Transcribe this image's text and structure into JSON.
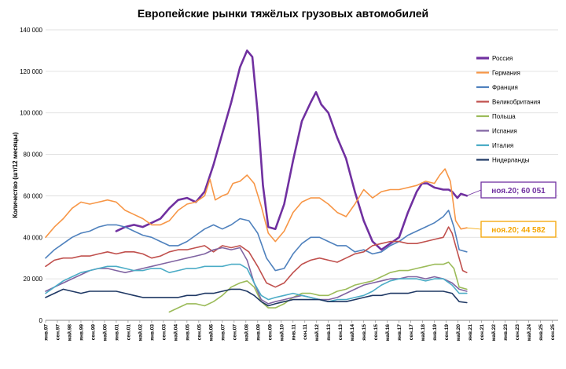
{
  "chart_data": {
    "type": "line",
    "title": "Европейские рынки тяжёлых грузовых автомобилей",
    "ylabel": "Количество (шт/12 месяцы)",
    "xlabel": "",
    "ylim": [
      0,
      140000
    ],
    "yticks": [
      0,
      20000,
      40000,
      60000,
      80000,
      100000,
      120000,
      140000
    ],
    "ytick_labels": [
      "0",
      "20 000",
      "40 000",
      "60 000",
      "80 000",
      "100 000",
      "120 000",
      "140 000"
    ],
    "xlim": [
      1997.0,
      2026.0
    ],
    "x_tick_labels": [
      "янв.97",
      "сен.97",
      "май.98",
      "янв.99",
      "сен.99",
      "май.00",
      "янв.01",
      "сен.01",
      "май.02",
      "янв.03",
      "сен.03",
      "май.04",
      "янв.05",
      "сен.05",
      "май.06",
      "янв.07",
      "сен.07",
      "май.08",
      "янв.09",
      "сен.09",
      "май.10",
      "янв.11",
      "сен.11",
      "май.12",
      "янв.13",
      "сен.13",
      "май.14",
      "янв.15",
      "сен.15",
      "май.16",
      "янв.17",
      "сен.17",
      "май.18",
      "янв.19",
      "сен.19",
      "май.20",
      "янв.21",
      "сен.21",
      "май.22",
      "янв.23",
      "сен.23",
      "май.24",
      "янв.25",
      "сен.25"
    ],
    "grid": "horizontal",
    "legend_position": "right",
    "series": [
      {
        "name": "Россия",
        "color": "#7030A0",
        "width": 2.6,
        "x": [
          2001.0,
          2001.5,
          2002.0,
          2002.5,
          2003.0,
          2003.5,
          2004.0,
          2004.5,
          2005.0,
          2005.5,
          2006.0,
          2006.5,
          2007.0,
          2007.5,
          2008.0,
          2008.4,
          2008.7,
          2009.0,
          2009.3,
          2009.6,
          2010.0,
          2010.5,
          2011.0,
          2011.5,
          2012.0,
          2012.3,
          2012.6,
          2013.0,
          2013.5,
          2014.0,
          2014.5,
          2015.0,
          2015.5,
          2016.0,
          2016.5,
          2017.0,
          2017.5,
          2018.0,
          2018.3,
          2018.6,
          2019.0,
          2019.5,
          2019.8,
          2020.0,
          2020.3,
          2020.5,
          2020.83
        ],
        "y": [
          43000,
          45000,
          46000,
          45000,
          47000,
          49000,
          54000,
          58000,
          59000,
          57000,
          62000,
          75000,
          90000,
          105000,
          122000,
          130000,
          127000,
          100000,
          65000,
          45000,
          44000,
          56000,
          77000,
          96000,
          105000,
          110000,
          104000,
          100000,
          88000,
          78000,
          62000,
          48000,
          38000,
          34000,
          37000,
          40000,
          52000,
          62000,
          66000,
          66000,
          64000,
          63000,
          63000,
          62000,
          59000,
          61000,
          60051
        ]
      },
      {
        "name": "Германия",
        "color": "#F79646",
        "width": 1.6,
        "x": [
          1997.0,
          1997.5,
          1998.0,
          1998.5,
          1999.0,
          1999.5,
          2000.0,
          2000.5,
          2001.0,
          2001.5,
          2002.0,
          2002.5,
          2003.0,
          2003.5,
          2004.0,
          2004.5,
          2005.0,
          2005.5,
          2006.0,
          2006.3,
          2006.6,
          2007.0,
          2007.3,
          2007.6,
          2008.0,
          2008.4,
          2008.8,
          2009.2,
          2009.6,
          2010.0,
          2010.5,
          2011.0,
          2011.5,
          2012.0,
          2012.5,
          2013.0,
          2013.5,
          2014.0,
          2014.5,
          2015.0,
          2015.5,
          2016.0,
          2016.5,
          2017.0,
          2017.5,
          2018.0,
          2018.5,
          2019.0,
          2019.3,
          2019.6,
          2019.9,
          2020.2,
          2020.5,
          2020.83
        ],
        "y": [
          40000,
          45000,
          49000,
          54000,
          57000,
          56000,
          57000,
          58000,
          57000,
          53000,
          51000,
          49000,
          46000,
          46000,
          48000,
          53000,
          56000,
          57000,
          60000,
          68000,
          58000,
          60000,
          61000,
          66000,
          67000,
          70000,
          66000,
          55000,
          42000,
          38000,
          43000,
          52000,
          57000,
          59000,
          59000,
          56000,
          52000,
          50000,
          56000,
          63000,
          59000,
          62000,
          63000,
          63000,
          64000,
          65000,
          67000,
          66000,
          70000,
          73000,
          67000,
          48000,
          44000,
          44582
        ]
      },
      {
        "name": "Франция",
        "color": "#4F81BD",
        "width": 1.6,
        "x": [
          1997.0,
          1997.5,
          1998.0,
          1998.5,
          1999.0,
          1999.5,
          2000.0,
          2000.5,
          2001.0,
          2001.5,
          2002.0,
          2002.5,
          2003.0,
          2003.5,
          2004.0,
          2004.5,
          2005.0,
          2005.5,
          2006.0,
          2006.5,
          2007.0,
          2007.5,
          2008.0,
          2008.5,
          2009.0,
          2009.5,
          2010.0,
          2010.5,
          2011.0,
          2011.5,
          2012.0,
          2012.5,
          2013.0,
          2013.5,
          2014.0,
          2014.5,
          2015.0,
          2015.5,
          2016.0,
          2016.5,
          2017.0,
          2017.5,
          2018.0,
          2018.5,
          2019.0,
          2019.5,
          2019.8,
          2020.1,
          2020.4,
          2020.83
        ],
        "y": [
          30000,
          34000,
          37000,
          40000,
          42000,
          43000,
          45000,
          46000,
          46000,
          45000,
          43000,
          41000,
          40000,
          38000,
          36000,
          36000,
          38000,
          41000,
          44000,
          46000,
          44000,
          46000,
          49000,
          48000,
          42000,
          30000,
          24000,
          25000,
          32000,
          37000,
          40000,
          40000,
          38000,
          36000,
          36000,
          33000,
          34000,
          32000,
          33000,
          36000,
          38000,
          41000,
          43000,
          45000,
          47000,
          50000,
          53000,
          45000,
          34000,
          33000
        ]
      },
      {
        "name": "Великобритания",
        "color": "#C0504D",
        "width": 1.6,
        "x": [
          1997.0,
          1997.5,
          1998.0,
          1998.5,
          1999.0,
          1999.5,
          2000.0,
          2000.5,
          2001.0,
          2001.5,
          2002.0,
          2002.5,
          2003.0,
          2003.5,
          2004.0,
          2004.5,
          2005.0,
          2005.5,
          2006.0,
          2006.5,
          2007.0,
          2007.5,
          2008.0,
          2008.5,
          2009.0,
          2009.5,
          2010.0,
          2010.5,
          2011.0,
          2011.5,
          2012.0,
          2012.5,
          2013.0,
          2013.5,
          2014.0,
          2014.5,
          2015.0,
          2015.5,
          2016.0,
          2016.5,
          2017.0,
          2017.5,
          2018.0,
          2018.5,
          2019.0,
          2019.5,
          2019.8,
          2020.0,
          2020.3,
          2020.6,
          2020.83
        ],
        "y": [
          26000,
          29000,
          30000,
          30000,
          31000,
          31000,
          32000,
          33000,
          32000,
          33000,
          33000,
          32000,
          30000,
          31000,
          33000,
          34000,
          34000,
          35000,
          36000,
          33000,
          36000,
          35000,
          36000,
          33000,
          26000,
          18000,
          16000,
          18000,
          23000,
          27000,
          29000,
          30000,
          29000,
          28000,
          30000,
          32000,
          33000,
          36000,
          37000,
          38000,
          38000,
          37000,
          37000,
          38000,
          39000,
          40000,
          45000,
          42000,
          33000,
          24000,
          23000
        ]
      },
      {
        "name": "Польша",
        "color": "#9BBB59",
        "width": 1.6,
        "x": [
          2004.0,
          2004.5,
          2005.0,
          2005.5,
          2006.0,
          2006.5,
          2007.0,
          2007.5,
          2008.0,
          2008.4,
          2008.8,
          2009.2,
          2009.6,
          2010.0,
          2010.5,
          2011.0,
          2011.5,
          2012.0,
          2012.5,
          2013.0,
          2013.5,
          2014.0,
          2014.5,
          2015.0,
          2015.5,
          2016.0,
          2016.5,
          2017.0,
          2017.5,
          2018.0,
          2018.5,
          2019.0,
          2019.5,
          2019.8,
          2020.1,
          2020.4,
          2020.83
        ],
        "y": [
          4000,
          6000,
          8000,
          8000,
          7000,
          9000,
          12000,
          16000,
          18000,
          19000,
          16000,
          9000,
          6000,
          6000,
          8000,
          11000,
          13000,
          13000,
          12000,
          12000,
          14000,
          15000,
          17000,
          18000,
          19000,
          21000,
          23000,
          24000,
          24000,
          25000,
          26000,
          27000,
          27000,
          28000,
          25000,
          16000,
          15000
        ]
      },
      {
        "name": "Испания",
        "color": "#8064A2",
        "width": 1.6,
        "x": [
          1997.0,
          1997.5,
          1998.0,
          1998.5,
          1999.0,
          1999.5,
          2000.0,
          2000.5,
          2001.0,
          2001.5,
          2002.0,
          2002.5,
          2003.0,
          2003.5,
          2004.0,
          2004.5,
          2005.0,
          2005.5,
          2006.0,
          2006.5,
          2007.0,
          2007.5,
          2008.0,
          2008.4,
          2008.8,
          2009.2,
          2009.6,
          2010.0,
          2010.5,
          2011.0,
          2011.5,
          2012.0,
          2012.5,
          2013.0,
          2013.5,
          2014.0,
          2014.5,
          2015.0,
          2015.5,
          2016.0,
          2016.5,
          2017.0,
          2017.5,
          2018.0,
          2018.5,
          2019.0,
          2019.5,
          2020.0,
          2020.4,
          2020.83
        ],
        "y": [
          14000,
          16000,
          18000,
          20000,
          22000,
          24000,
          25000,
          25000,
          24000,
          23000,
          24000,
          25000,
          26000,
          27000,
          28000,
          29000,
          30000,
          31000,
          32000,
          34000,
          35000,
          34000,
          35000,
          29000,
          18000,
          10000,
          8000,
          9000,
          10000,
          11000,
          12000,
          11000,
          10000,
          10000,
          11000,
          13000,
          15000,
          17000,
          18000,
          19000,
          20000,
          20000,
          21000,
          21000,
          20000,
          21000,
          20000,
          18000,
          15000,
          14000
        ]
      },
      {
        "name": "Италия",
        "color": "#4BACC6",
        "width": 1.6,
        "x": [
          1997.0,
          1997.5,
          1998.0,
          1998.5,
          1999.0,
          1999.5,
          2000.0,
          2000.5,
          2001.0,
          2001.5,
          2002.0,
          2002.5,
          2003.0,
          2003.5,
          2004.0,
          2004.5,
          2005.0,
          2005.5,
          2006.0,
          2006.5,
          2007.0,
          2007.5,
          2008.0,
          2008.4,
          2008.8,
          2009.2,
          2009.6,
          2010.0,
          2010.5,
          2011.0,
          2011.5,
          2012.0,
          2012.5,
          2013.0,
          2013.5,
          2014.0,
          2014.5,
          2015.0,
          2015.5,
          2016.0,
          2016.5,
          2017.0,
          2017.5,
          2018.0,
          2018.5,
          2019.0,
          2019.5,
          2020.0,
          2020.4,
          2020.83
        ],
        "y": [
          13000,
          16000,
          19000,
          21000,
          23000,
          24000,
          25000,
          26000,
          26000,
          25000,
          24000,
          24000,
          25000,
          25000,
          23000,
          24000,
          25000,
          25000,
          26000,
          26000,
          26000,
          27000,
          27000,
          25000,
          18000,
          12000,
          10000,
          11000,
          12000,
          13000,
          12000,
          11000,
          10000,
          9000,
          10000,
          10000,
          11000,
          12000,
          14000,
          17000,
          19000,
          20000,
          20000,
          20000,
          19000,
          20000,
          20000,
          17000,
          13000,
          13000
        ]
      },
      {
        "name": "Нидерланды",
        "color": "#1F3864",
        "width": 1.6,
        "x": [
          1997.0,
          1997.5,
          1998.0,
          1998.5,
          1999.0,
          1999.5,
          2000.0,
          2000.5,
          2001.0,
          2001.5,
          2002.0,
          2002.5,
          2003.0,
          2003.5,
          2004.0,
          2004.5,
          2005.0,
          2005.5,
          2006.0,
          2006.5,
          2007.0,
          2007.5,
          2008.0,
          2008.4,
          2008.8,
          2009.2,
          2009.6,
          2010.0,
          2010.5,
          2011.0,
          2011.5,
          2012.0,
          2012.5,
          2013.0,
          2013.5,
          2014.0,
          2014.5,
          2015.0,
          2015.5,
          2016.0,
          2016.5,
          2017.0,
          2017.5,
          2018.0,
          2018.5,
          2019.0,
          2019.5,
          2020.0,
          2020.4,
          2020.83
        ],
        "y": [
          11000,
          13000,
          15000,
          14000,
          13000,
          14000,
          14000,
          14000,
          14000,
          13000,
          12000,
          11000,
          11000,
          11000,
          11000,
          11000,
          12000,
          12000,
          13000,
          13000,
          14000,
          15000,
          15000,
          14000,
          12000,
          9000,
          7000,
          8000,
          9000,
          10000,
          10000,
          10000,
          10000,
          9000,
          9000,
          9000,
          10000,
          11000,
          12000,
          12000,
          13000,
          13000,
          13000,
          14000,
          14000,
          14000,
          14000,
          13000,
          9000,
          8500
        ]
      }
    ],
    "annotations": [
      {
        "text": "ноя.20;  60 051",
        "series": "Россия",
        "x": 2020.83,
        "y": 60051,
        "color": "#7030A0"
      },
      {
        "text": "ноя.20;  44 582",
        "series": "Германия",
        "x": 2020.83,
        "y": 44582,
        "color": "#F5A500"
      }
    ]
  }
}
